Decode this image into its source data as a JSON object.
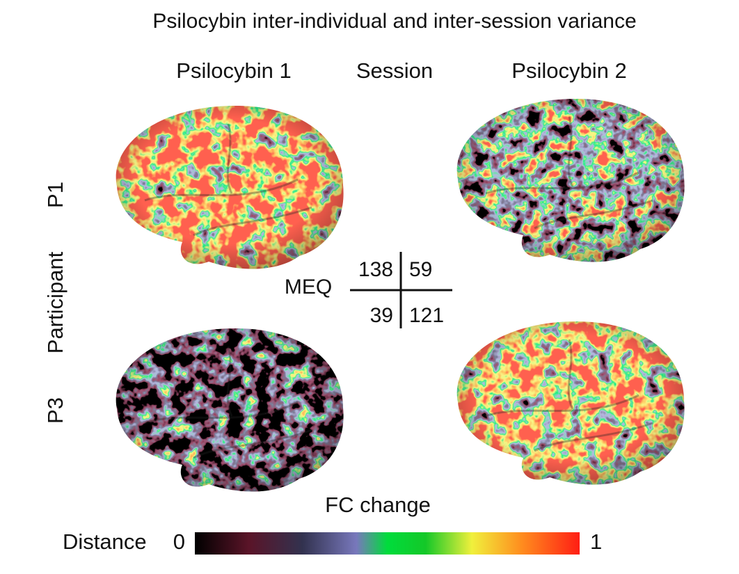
{
  "title": "Psilocybin inter-individual and inter-session variance",
  "columns": [
    "Psilocybin 1",
    "Session",
    "Psilocybin 2"
  ],
  "rows": {
    "label": "Participant",
    "items": [
      "P1",
      "P3"
    ]
  },
  "meq": {
    "label": "MEQ",
    "table": [
      [
        138,
        59
      ],
      [
        39,
        121
      ]
    ]
  },
  "colorbar": {
    "title": "FC change",
    "label": "Distance",
    "min": 0,
    "max": 1
  }
}
